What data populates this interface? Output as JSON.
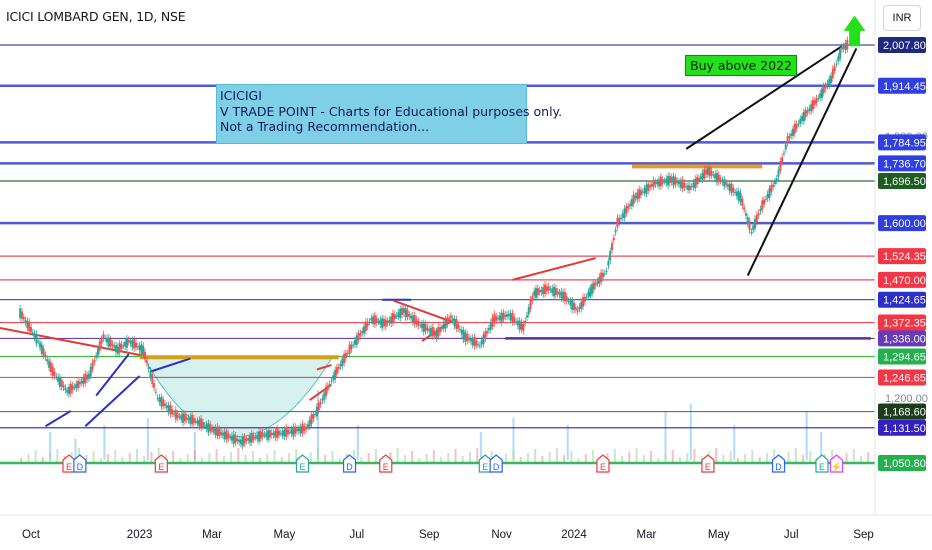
{
  "header": {
    "ticker": "ICICI LOMBARD GEN, 1D, NSE",
    "currency": "INR"
  },
  "annotations": {
    "note_lines": [
      "ICICIGI",
      "V TRADE POINT - Charts for Educational purposes only.",
      "Not a Trading Recommendation..."
    ],
    "buy_label": "Buy above 2022"
  },
  "chart_data": {
    "type": "line",
    "title": "ICICI LOMBARD GEN, 1D, NSE",
    "xlabel": "",
    "ylabel": "",
    "ylim": [
      1030,
      2050
    ],
    "x_ticks": [
      "Oct",
      "2023",
      "Mar",
      "May",
      "Jul",
      "Sep",
      "Nov",
      "2024",
      "Mar",
      "May",
      "Jul",
      "Sep"
    ],
    "x_tick_months": [
      0,
      3,
      5,
      7,
      9,
      11,
      13,
      15,
      17,
      19,
      21,
      23
    ],
    "xlim_months": [
      -0.3,
      24.5
    ],
    "series": [
      {
        "values_month_price": [
          [
            -0.3,
            1395
          ],
          [
            0.2,
            1330
          ],
          [
            0.6,
            1260
          ],
          [
            1.0,
            1215
          ],
          [
            1.3,
            1230
          ],
          [
            1.6,
            1250
          ],
          [
            2.0,
            1340
          ],
          [
            2.4,
            1310
          ],
          [
            2.7,
            1330
          ],
          [
            3.1,
            1310
          ],
          [
            3.5,
            1200
          ],
          [
            4.0,
            1160
          ],
          [
            4.6,
            1145
          ],
          [
            5.2,
            1120
          ],
          [
            5.8,
            1100
          ],
          [
            6.4,
            1115
          ],
          [
            7.0,
            1120
          ],
          [
            7.6,
            1130
          ],
          [
            7.9,
            1170
          ],
          [
            8.3,
            1240
          ],
          [
            8.8,
            1310
          ],
          [
            9.4,
            1380
          ],
          [
            9.8,
            1370
          ],
          [
            10.3,
            1400
          ],
          [
            10.7,
            1370
          ],
          [
            11.2,
            1345
          ],
          [
            11.6,
            1385
          ],
          [
            12.0,
            1340
          ],
          [
            12.4,
            1320
          ],
          [
            12.8,
            1380
          ],
          [
            13.2,
            1390
          ],
          [
            13.6,
            1360
          ],
          [
            13.9,
            1440
          ],
          [
            14.3,
            1450
          ],
          [
            14.7,
            1435
          ],
          [
            15.1,
            1400
          ],
          [
            15.5,
            1450
          ],
          [
            15.9,
            1490
          ],
          [
            16.2,
            1600
          ],
          [
            16.7,
            1660
          ],
          [
            17.2,
            1690
          ],
          [
            17.7,
            1700
          ],
          [
            18.2,
            1680
          ],
          [
            18.7,
            1720
          ],
          [
            19.2,
            1690
          ],
          [
            19.6,
            1660
          ],
          [
            19.9,
            1580
          ],
          [
            20.2,
            1640
          ],
          [
            20.6,
            1700
          ],
          [
            20.9,
            1790
          ],
          [
            21.3,
            1840
          ],
          [
            21.7,
            1880
          ],
          [
            22.1,
            1930
          ],
          [
            22.4,
            2000
          ],
          [
            22.6,
            2010
          ]
        ]
      }
    ],
    "volume_months": [
      0.5,
      1.2,
      2.0,
      3.2,
      4.5,
      7.9,
      9.0,
      12.4,
      13.3,
      14.8,
      17.5,
      18.2,
      19.4,
      21.4,
      21.8
    ],
    "volume_heights": [
      0.4,
      0.3,
      0.5,
      0.6,
      0.4,
      1.0,
      0.5,
      0.4,
      0.6,
      0.5,
      0.7,
      0.8,
      0.5,
      0.7,
      0.4
    ],
    "price_lines": [
      {
        "value": 2007.8,
        "label": "2,007.80",
        "color": "#2f3a99",
        "bg": "#1d2a80"
      },
      {
        "value": 1914.45,
        "label": "1,914.45",
        "color": "#3b48d8",
        "bg": "#2f3fe0"
      },
      {
        "value": 1784.95,
        "label": "1,784.95",
        "color": "#3b48d8",
        "bg": "#2f3fe0"
      },
      {
        "value": 1736.7,
        "label": "1,736.70",
        "color": "#3b48d8",
        "bg": "#2f3fe0"
      },
      {
        "value": 1696.5,
        "label": "1,696.50",
        "color": "#1b5e20",
        "bg": "#1b5e20"
      },
      {
        "value": 1600.0,
        "label": "1,600.00",
        "color": "#3b48d8",
        "bg": "#2f3fe0"
      },
      {
        "value": 1524.35,
        "label": "1,524.35",
        "color": "#f23645",
        "bg": "#f23645"
      },
      {
        "value": 1470.0,
        "label": "1,470.00",
        "color": "#f23645",
        "bg": "#f23645"
      },
      {
        "value": 1424.65,
        "label": "1,424.65",
        "color": "#2c30c8",
        "bg": "#2c30c8"
      },
      {
        "value": 1372.35,
        "label": "1,372.35",
        "color": "#f23645",
        "bg": "#f23645"
      },
      {
        "value": 1336.0,
        "label": "1,336.00",
        "color": "#5b2c9f",
        "bg": "#673ab7"
      },
      {
        "value": 1294.65,
        "label": "1,294.65",
        "color": "#2cb52c",
        "bg": "#22b14c"
      },
      {
        "value": 1246.65,
        "label": "1,246.65",
        "color": "#f23645",
        "bg": "#f23645"
      },
      {
        "value": 1168.6,
        "label": "1,168.60",
        "color": "#2e7d32",
        "bg": "#1b3d1b"
      },
      {
        "value": 1131.5,
        "label": "1,131.50",
        "color": "#3b20b8",
        "bg": "#3422c0"
      },
      {
        "value": 1050.8,
        "label": "1,050.80",
        "color": "#22b14c",
        "bg": "#22b14c"
      }
    ],
    "faint_ticks": [
      {
        "value": 1800.0,
        "label": "1,800.00"
      },
      {
        "value": 1200.0,
        "label": "1,200.00"
      }
    ],
    "events": [
      {
        "month": 1.05,
        "letter": "E",
        "color": "#f23645"
      },
      {
        "month": 1.35,
        "letter": "D",
        "color": "#2962ff"
      },
      {
        "month": 3.6,
        "letter": "E",
        "color": "#f23645"
      },
      {
        "month": 7.5,
        "letter": "E",
        "color": "#26a69a"
      },
      {
        "month": 8.8,
        "letter": "D",
        "color": "#2962ff"
      },
      {
        "month": 9.8,
        "letter": "E",
        "color": "#f23645"
      },
      {
        "month": 12.55,
        "letter": "E",
        "color": "#26a69a"
      },
      {
        "month": 12.85,
        "letter": "D",
        "color": "#2962ff"
      },
      {
        "month": 15.8,
        "letter": "E",
        "color": "#f23645"
      },
      {
        "month": 18.7,
        "letter": "E",
        "color": "#f23645"
      },
      {
        "month": 20.65,
        "letter": "D",
        "color": "#2962ff"
      },
      {
        "month": 21.85,
        "letter": "E",
        "color": "#26a69a"
      },
      {
        "month": 22.25,
        "letter": "⚡",
        "color": "#e040fb"
      }
    ],
    "accent_up": "#26a69a",
    "accent_down": "#ef5350",
    "grid": false,
    "legend": "none"
  }
}
